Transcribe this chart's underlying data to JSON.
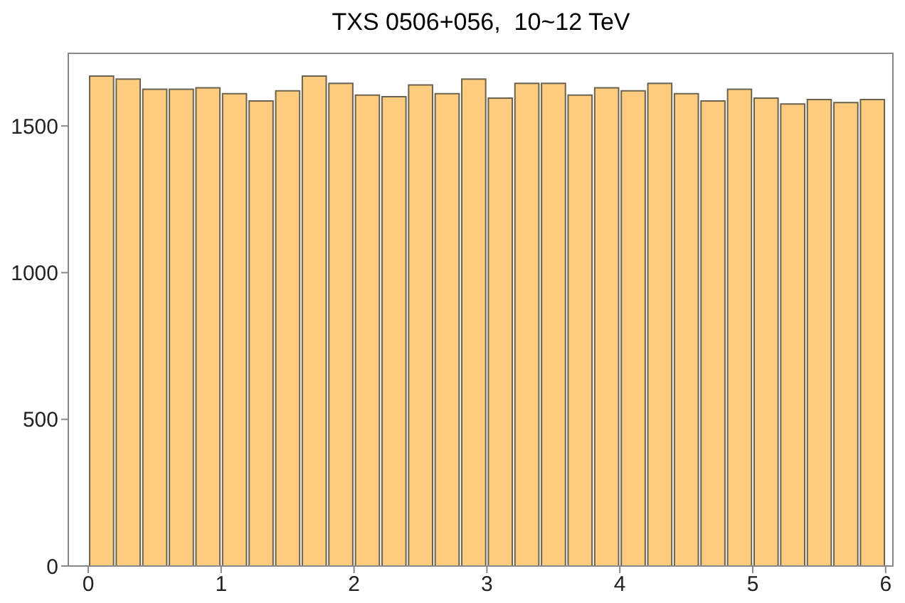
{
  "chart_data": {
    "type": "histogram",
    "title": "TXS 0506+056,  10~12 TeV",
    "bins": [
      0,
      0.2,
      0.4,
      0.6,
      0.8,
      1,
      1.2,
      1.4,
      1.6,
      1.8,
      2,
      2.2,
      2.4,
      2.6,
      2.8,
      3,
      3.2,
      3.4,
      3.6,
      3.8,
      4,
      4.2,
      4.4,
      4.6,
      4.8,
      5,
      5.2,
      5.4,
      5.6,
      5.8,
      6
    ],
    "values": [
      1670,
      1660,
      1625,
      1625,
      1630,
      1610,
      1585,
      1620,
      1670,
      1645,
      1605,
      1600,
      1640,
      1610,
      1660,
      1595,
      1645,
      1645,
      1605,
      1630,
      1620,
      1645,
      1610,
      1585,
      1625,
      1595,
      1575,
      1590,
      1580,
      1590
    ],
    "color": "#fdcc7e",
    "xlim": [
      -0.15,
      6.06
    ],
    "xticks": [
      0,
      1,
      2,
      3,
      4,
      5,
      6
    ],
    "ylim": [
      0,
      1750
    ],
    "yticks": [
      0,
      500,
      1000,
      1500
    ],
    "grid": false
  }
}
